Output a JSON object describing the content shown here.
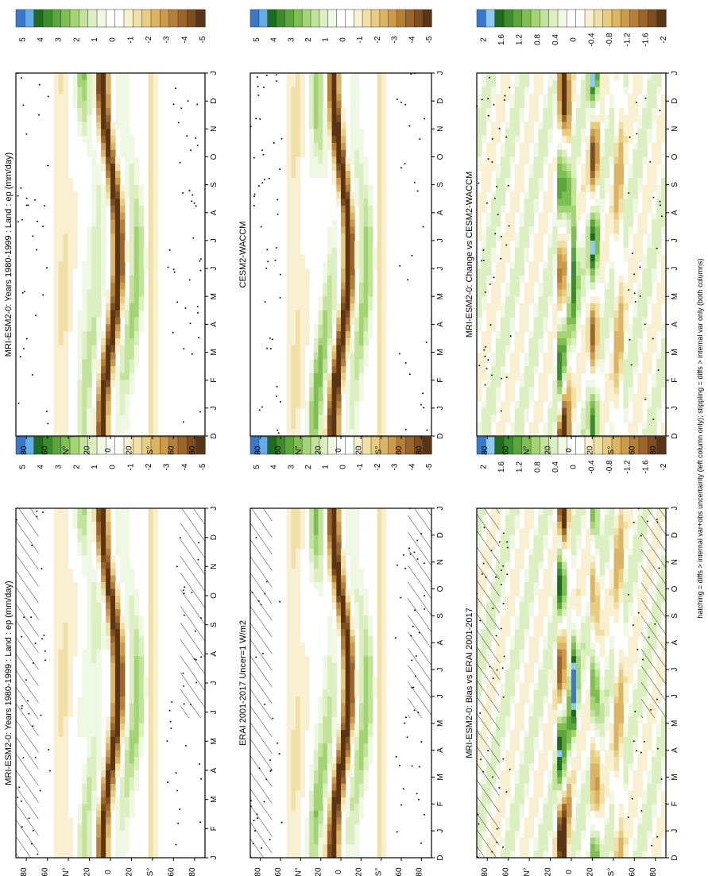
{
  "figure": {
    "footnote": "hatching = diffs > internal var+obs uncertainty (left column only); stippling = diffs > internal var only (both columns)"
  },
  "colors": {
    "field_scale": [
      "#3a78c9",
      "#62aee6",
      "#1d6b1d",
      "#3c8c2c",
      "#5aa63a",
      "#7fbf52",
      "#a3d474",
      "#c3e39c",
      "#dcefc1",
      "#eef8e2",
      "#ffffff",
      "#ffffff",
      "#f8f0d0",
      "#f1e0a6",
      "#e8cc80",
      "#dcb564",
      "#cc9a48",
      "#b57f36",
      "#9c662a",
      "#7d4e1f",
      "#5a3414"
    ],
    "diff_scale": [
      "#3a78c9",
      "#8ccbef",
      "#1d6b1d",
      "#3c8c2c",
      "#5aa63a",
      "#7fbf52",
      "#a3d474",
      "#c3e39c",
      "#dcefc1",
      "#eef8e2",
      "#ffffff",
      "#ffffff",
      "#f8f0d0",
      "#f1e0a6",
      "#e8cc80",
      "#dcb564",
      "#cc9a48",
      "#b57f36",
      "#9c662a",
      "#7d4e1f",
      "#5a3414"
    ]
  },
  "chart_data": [
    {
      "id": "tl",
      "type": "heatmap",
      "title": "MRI-ESM2-0: Years 1980-1999 : Land : ep (mm/day)",
      "xlabel": "",
      "ylabel": "",
      "months": [
        "J",
        "F",
        "M",
        "A",
        "M",
        "J",
        "J",
        "A",
        "S",
        "O",
        "N",
        "D",
        "J"
      ],
      "lat_ticks": [
        "80",
        "60",
        "N°",
        "20",
        "0",
        "20",
        "S°",
        "60",
        "80"
      ],
      "colorbar": {
        "labels": [
          "5",
          "4",
          "3",
          "2",
          "1",
          "0",
          "-1",
          "-2",
          "-3",
          "-4",
          "-5"
        ],
        "range": [
          -5,
          5
        ]
      },
      "hatching": true,
      "stippling": true,
      "kind": "field"
    },
    {
      "id": "tr",
      "type": "heatmap",
      "title": "MRI-ESM2-0: Years 1980-1999 : Land : ep (mm/day)",
      "xlabel": "",
      "ylabel": "",
      "months": [
        "D",
        "J",
        "F",
        "M",
        "A",
        "M",
        "J",
        "J",
        "A",
        "S",
        "O",
        "N",
        "D",
        "J"
      ],
      "lat_ticks": [
        "80",
        "60",
        "N°",
        "20",
        "0",
        "20",
        "S°",
        "60",
        "80"
      ],
      "colorbar": {
        "labels": [
          "5",
          "4",
          "3",
          "2",
          "1",
          "0",
          "-1",
          "-2",
          "-3",
          "-4",
          "-5"
        ],
        "range": [
          -5,
          5
        ]
      },
      "hatching": false,
      "stippling": true,
      "kind": "field"
    },
    {
      "id": "ml",
      "type": "heatmap",
      "title": "ERAI 2001-2017 Uncer=1 W/m2",
      "xlabel": "",
      "ylabel": "",
      "months": [
        "D",
        "J",
        "F",
        "M",
        "A",
        "M",
        "J",
        "J",
        "A",
        "S",
        "O",
        "N",
        "D",
        "J"
      ],
      "lat_ticks": [
        "80",
        "60",
        "N°",
        "20",
        "0",
        "20",
        "S°",
        "60",
        "80"
      ],
      "colorbar": {
        "labels": [
          "5",
          "4",
          "3",
          "2",
          "1",
          "0",
          "-1",
          "-2",
          "-3",
          "-4",
          "-5"
        ],
        "range": [
          -5,
          5
        ]
      },
      "hatching": true,
      "stippling": true,
      "kind": "field"
    },
    {
      "id": "mr",
      "type": "heatmap",
      "title": "CESM2-WACCM",
      "xlabel": "",
      "ylabel": "",
      "months": [
        "D",
        "J",
        "F",
        "M",
        "A",
        "M",
        "J",
        "J",
        "A",
        "S",
        "O",
        "N",
        "D",
        "J"
      ],
      "lat_ticks": [
        "80",
        "60",
        "N°",
        "20",
        "0",
        "20",
        "S°",
        "60",
        "80"
      ],
      "colorbar": {
        "labels": [
          "5",
          "4",
          "3",
          "2",
          "1",
          "0",
          "-1",
          "-2",
          "-3",
          "-4",
          "-5"
        ],
        "range": [
          -5,
          5
        ]
      },
      "hatching": false,
      "stippling": true,
      "kind": "field"
    },
    {
      "id": "bl",
      "type": "heatmap",
      "title": "MRI-ESM2-0: Bias vs ERAI 2001-2017",
      "xlabel": "",
      "ylabel": "",
      "months": [
        "D",
        "J",
        "F",
        "M",
        "A",
        "M",
        "J",
        "J",
        "A",
        "S",
        "O",
        "N",
        "D",
        "J"
      ],
      "lat_ticks": [
        "80",
        "60",
        "N°",
        "20",
        "0",
        "20",
        "S°",
        "60",
        "80"
      ],
      "colorbar": {
        "labels": [
          "2",
          "1.6",
          "1.2",
          "0.8",
          "0.4",
          "0",
          "-0.4",
          "-0.8",
          "-1.2",
          "-1.6",
          "-2"
        ],
        "range": [
          -2,
          2
        ]
      },
      "hatching": true,
      "stippling": true,
      "kind": "diff"
    },
    {
      "id": "br",
      "type": "heatmap",
      "title": "MRI-ESM2-0: Change vs CESM2-WACCM",
      "xlabel": "",
      "ylabel": "",
      "months": [
        "D",
        "J",
        "F",
        "M",
        "A",
        "M",
        "J",
        "J",
        "A",
        "S",
        "O",
        "N",
        "D",
        "J"
      ],
      "lat_ticks": [
        "80",
        "60",
        "N°",
        "20",
        "0",
        "20",
        "S°",
        "60",
        "80"
      ],
      "colorbar": {
        "labels": [
          "2",
          "1.6",
          "1.2",
          "0.8",
          "0.4",
          "0",
          "-0.4",
          "-0.8",
          "-1.2",
          "-1.6",
          "-2"
        ],
        "range": [
          -2,
          2
        ]
      },
      "hatching": false,
      "stippling": true,
      "kind": "diff"
    }
  ]
}
